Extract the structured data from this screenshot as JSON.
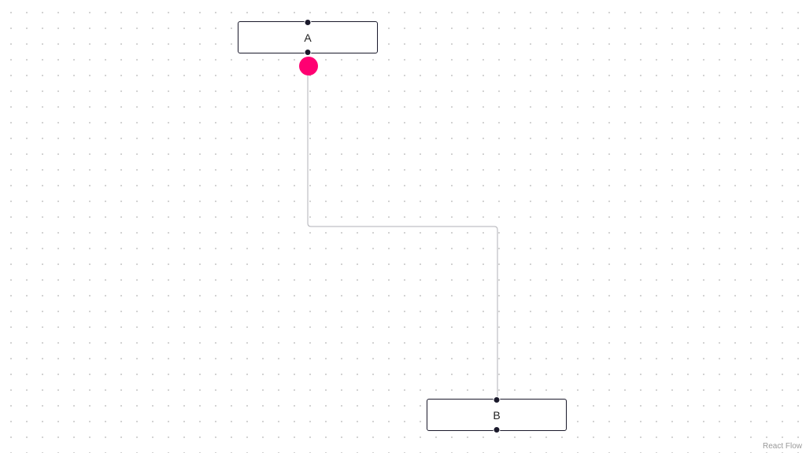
{
  "flow": {
    "nodes": [
      {
        "id": "A",
        "label": "A"
      },
      {
        "id": "B",
        "label": "B"
      }
    ],
    "edges": [
      {
        "source": "A",
        "target": "B",
        "type": "step"
      }
    ],
    "connector_color": "#ff0072",
    "node_border_color": "#1a192b",
    "background": "dots"
  },
  "attribution": {
    "label": "React Flow"
  }
}
